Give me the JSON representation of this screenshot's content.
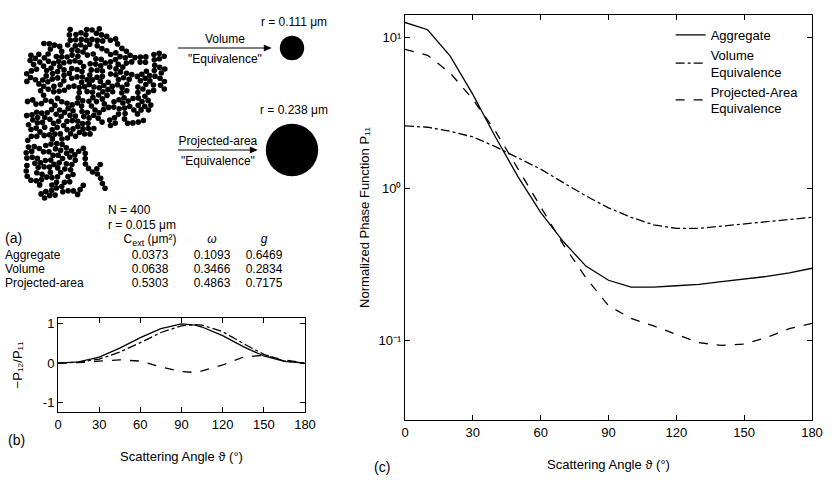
{
  "panel_a": {
    "panel": "(a)",
    "aggregate": {
      "N": 400,
      "labels": [
        "N = 400",
        "r = 0.015 μm"
      ]
    },
    "spheres": [
      {
        "label": "Volume \"Equivalence\"",
        "radius_um": 0.111,
        "radius_label": "r = 0.111 μm"
      },
      {
        "label": "Projected-area \"Equivalence\"",
        "radius_um": 0.238,
        "radius_label": "r = 0.238 μm"
      }
    ],
    "table": {
      "columns": [
        {
          "text": "C",
          "sub": "ext",
          "after": " (μm²)"
        },
        {
          "text": "ω"
        },
        {
          "text": "g"
        }
      ],
      "rows": [
        {
          "name": "Aggregate",
          "values": [
            0.0373,
            0.1093,
            0.6469
          ]
        },
        {
          "name": "Volume",
          "values": [
            0.0638,
            0.3466,
            0.2834
          ]
        },
        {
          "name": "Projected-area",
          "values": [
            0.5303,
            0.4863,
            0.7175
          ]
        }
      ]
    }
  },
  "chart_data": [
    {
      "panel": "(b)",
      "type": "line",
      "x_label": "Scattering Angle ϑ (°)",
      "y_label": "−P₁₂/P₁₁",
      "x": [
        0,
        15,
        30,
        45,
        60,
        75,
        90,
        100,
        105,
        120,
        135,
        150,
        165,
        180
      ],
      "xlim": [
        0,
        180
      ],
      "xticks": [
        0,
        30,
        60,
        90,
        120,
        150,
        180
      ],
      "ylim": [
        -1.25,
        1.15
      ],
      "yticks": [
        -1,
        0,
        1
      ],
      "grid": false,
      "series": [
        {
          "name": "Aggregate",
          "color": "#000000",
          "line_style": "solid",
          "values": [
            0,
            0.03,
            0.15,
            0.38,
            0.65,
            0.88,
            1.0,
            0.97,
            0.92,
            0.7,
            0.42,
            0.18,
            0.04,
            0
          ]
        },
        {
          "name": "Volume Equivalence",
          "color": "#000000",
          "line_style": "dashdot",
          "values": [
            0,
            0.02,
            0.1,
            0.28,
            0.52,
            0.78,
            0.95,
            0.98,
            0.97,
            0.8,
            0.5,
            0.22,
            0.05,
            0
          ]
        },
        {
          "name": "Projected-Area Equivalence",
          "color": "#000000",
          "line_style": "dash",
          "values": [
            0,
            0.01,
            0.05,
            0.08,
            0.05,
            -0.1,
            -0.22,
            -0.24,
            -0.2,
            -0.05,
            0.15,
            0.2,
            0.08,
            0
          ]
        }
      ]
    },
    {
      "panel": "(c)",
      "type": "line",
      "x_label": "Scattering Angle ϑ (°)",
      "y_label": "Normalized Phase Function P₁₁",
      "x": [
        0,
        10,
        20,
        30,
        40,
        50,
        60,
        70,
        80,
        90,
        100,
        110,
        120,
        130,
        140,
        150,
        160,
        170,
        180
      ],
      "xlim": [
        0,
        180
      ],
      "xticks": [
        0,
        30,
        60,
        90,
        120,
        150,
        180
      ],
      "log": "y",
      "ylim": [
        0.03,
        14
      ],
      "yticks": [
        {
          "value": 0.1,
          "label": "10⁻¹"
        },
        {
          "value": 1,
          "label": "10⁰"
        },
        {
          "value": 10,
          "label": "10¹"
        }
      ],
      "grid": false,
      "legend": "upper right",
      "series": [
        {
          "name": "Aggregate",
          "color": "#000000",
          "line_style": "solid",
          "values": [
            12.5,
            11.2,
            7.5,
            4.2,
            2.2,
            1.2,
            0.7,
            0.45,
            0.31,
            0.25,
            0.225,
            0.225,
            0.23,
            0.235,
            0.245,
            0.255,
            0.265,
            0.28,
            0.3
          ]
        },
        {
          "name": "Volume Equivalence",
          "color": "#000000",
          "line_style": "dashdot",
          "values": [
            2.6,
            2.55,
            2.4,
            2.2,
            1.9,
            1.6,
            1.35,
            1.1,
            0.9,
            0.75,
            0.65,
            0.58,
            0.55,
            0.55,
            0.57,
            0.59,
            0.61,
            0.63,
            0.65
          ]
        },
        {
          "name": "Projected-Area Equivalence",
          "color": "#000000",
          "line_style": "dash",
          "values": [
            8.3,
            7.6,
            5.8,
            3.9,
            2.4,
            1.35,
            0.75,
            0.43,
            0.26,
            0.17,
            0.14,
            0.125,
            0.11,
            0.097,
            0.093,
            0.095,
            0.105,
            0.12,
            0.13
          ]
        }
      ]
    }
  ]
}
